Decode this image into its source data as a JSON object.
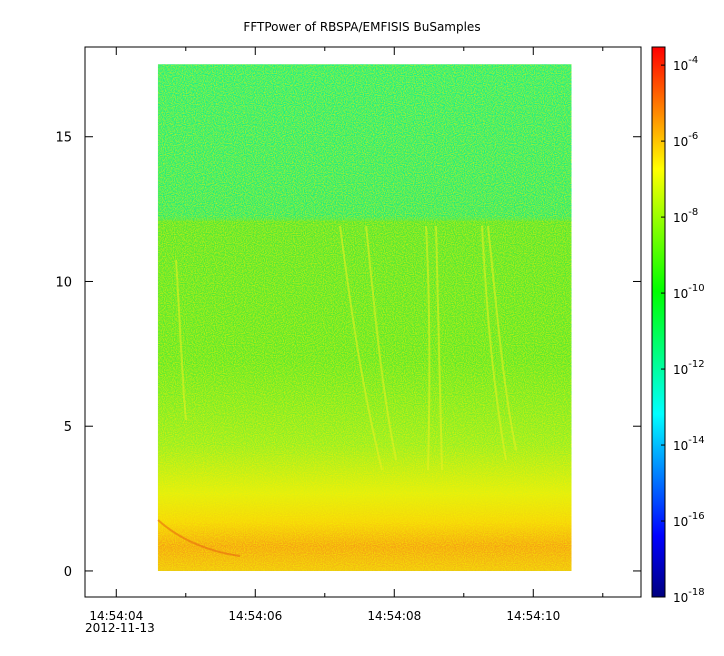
{
  "chart_data": {
    "type": "heatmap",
    "title": "FFTPower of RBSPA/EMFISIS  BuSamples",
    "xlabel": "",
    "ylabel": "",
    "x_axis": {
      "start_date": "2012-11-13",
      "start": "14:54:04",
      "ticks": [
        "14:54:04",
        "14:54:06",
        "14:54:08",
        "14:54:10"
      ],
      "minor_ticks": [
        "14:54:05",
        "14:54:07",
        "14:54:09",
        "14:54:11"
      ],
      "range": [
        "14:54:03.55",
        "14:54:11.55"
      ],
      "data_range": [
        "14:54:04.6",
        "14:54:10.55"
      ]
    },
    "y_axis": {
      "range": [
        -0.9,
        18.1
      ],
      "ticks": [
        0,
        5,
        10,
        15
      ],
      "data_range": [
        0,
        17.5
      ],
      "band_edge": 12.1
    },
    "colorbar": {
      "scale": "log",
      "range": [
        1e-18,
        0.0003
      ],
      "ticks": [
        {
          "value": 0.0001,
          "base": "10",
          "exp": "-4"
        },
        {
          "value": 1e-06,
          "base": "10",
          "exp": "-6"
        },
        {
          "value": 1e-08,
          "base": "10",
          "exp": "-8"
        },
        {
          "value": 1e-10,
          "base": "10",
          "exp": "-10"
        },
        {
          "value": 1e-12,
          "base": "10",
          "exp": "-12"
        },
        {
          "value": 1e-14,
          "base": "10",
          "exp": "-14"
        },
        {
          "value": 1e-16,
          "base": "10",
          "exp": "-16"
        },
        {
          "value": 1e-18,
          "base": "10",
          "exp": "-18"
        }
      ],
      "colormap": [
        "#00007f",
        "#0000ff",
        "#007fff",
        "#00ffff",
        "#00ff7f",
        "#00ff00",
        "#7fff00",
        "#ffff00",
        "#ff7f00",
        "#ff0000"
      ]
    },
    "grid": false,
    "legend": "none"
  }
}
